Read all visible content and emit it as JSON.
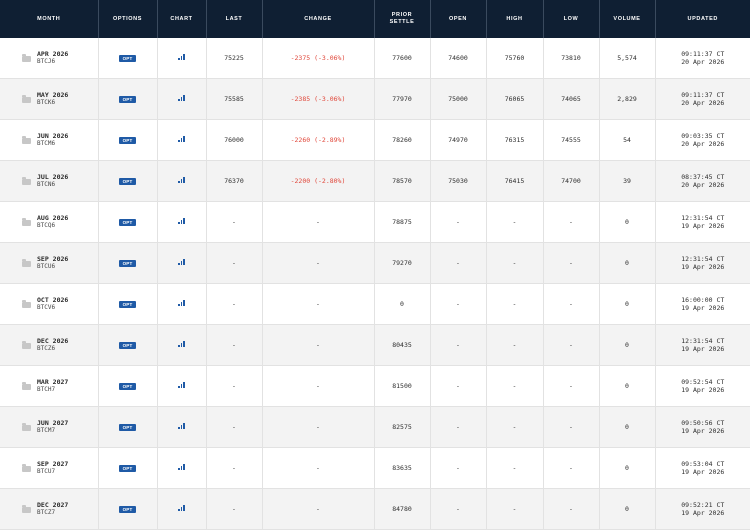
{
  "headers": {
    "month": "MONTH",
    "options": "OPTIONS",
    "chart": "CHART",
    "last": "LAST",
    "change": "CHANGE",
    "prior_settle_1": "PRIOR",
    "prior_settle_2": "SETTLE",
    "open": "OPEN",
    "high": "HIGH",
    "low": "LOW",
    "volume": "VOLUME",
    "updated": "UPDATED"
  },
  "opt_label": "OPT",
  "colors": {
    "header_bg": "#0f1f33",
    "opt_badge": "#1f5aa6",
    "negative": "#e0473a"
  },
  "rows": [
    {
      "month": "APR 2026",
      "code": "BTCJ6",
      "last": "75225",
      "change": "-2375 (-3.06%)",
      "prior_settle": "77600",
      "open": "74600",
      "high": "75760",
      "low": "73810",
      "volume": "5,574",
      "time": "09:11:37 CT",
      "date": "20 Apr 2026"
    },
    {
      "month": "MAY 2026",
      "code": "BTCK6",
      "last": "75585",
      "change": "-2385 (-3.06%)",
      "prior_settle": "77970",
      "open": "75000",
      "high": "76065",
      "low": "74065",
      "volume": "2,829",
      "time": "09:11:37 CT",
      "date": "20 Apr 2026"
    },
    {
      "month": "JUN 2026",
      "code": "BTCM6",
      "last": "76000",
      "change": "-2260 (-2.89%)",
      "prior_settle": "78260",
      "open": "74970",
      "high": "76315",
      "low": "74555",
      "volume": "54",
      "time": "09:03:35 CT",
      "date": "20 Apr 2026"
    },
    {
      "month": "JUL 2026",
      "code": "BTCN6",
      "last": "76370",
      "change": "-2200 (-2.80%)",
      "prior_settle": "78570",
      "open": "75030",
      "high": "76415",
      "low": "74700",
      "volume": "39",
      "time": "08:37:45 CT",
      "date": "20 Apr 2026"
    },
    {
      "month": "AUG 2026",
      "code": "BTCQ6",
      "last": "-",
      "change": "-",
      "prior_settle": "78875",
      "open": "-",
      "high": "-",
      "low": "-",
      "volume": "0",
      "time": "12:31:54 CT",
      "date": "19 Apr 2026"
    },
    {
      "month": "SEP 2026",
      "code": "BTCU6",
      "last": "-",
      "change": "-",
      "prior_settle": "79270",
      "open": "-",
      "high": "-",
      "low": "-",
      "volume": "0",
      "time": "12:31:54 CT",
      "date": "19 Apr 2026"
    },
    {
      "month": "OCT 2026",
      "code": "BTCV6",
      "last": "-",
      "change": "-",
      "prior_settle": "0",
      "open": "-",
      "high": "-",
      "low": "-",
      "volume": "0",
      "time": "16:00:00 CT",
      "date": "19 Apr 2026"
    },
    {
      "month": "DEC 2026",
      "code": "BTCZ6",
      "last": "-",
      "change": "-",
      "prior_settle": "80435",
      "open": "-",
      "high": "-",
      "low": "-",
      "volume": "0",
      "time": "12:31:54 CT",
      "date": "19 Apr 2026"
    },
    {
      "month": "MAR 2027",
      "code": "BTCH7",
      "last": "-",
      "change": "-",
      "prior_settle": "81500",
      "open": "-",
      "high": "-",
      "low": "-",
      "volume": "0",
      "time": "09:52:54 CT",
      "date": "19 Apr 2026"
    },
    {
      "month": "JUN 2027",
      "code": "BTCM7",
      "last": "-",
      "change": "-",
      "prior_settle": "82575",
      "open": "-",
      "high": "-",
      "low": "-",
      "volume": "0",
      "time": "09:50:56 CT",
      "date": "19 Apr 2026"
    },
    {
      "month": "SEP 2027",
      "code": "BTCU7",
      "last": "-",
      "change": "-",
      "prior_settle": "83635",
      "open": "-",
      "high": "-",
      "low": "-",
      "volume": "0",
      "time": "09:53:04 CT",
      "date": "19 Apr 2026"
    },
    {
      "month": "DEC 2027",
      "code": "BTCZ7",
      "last": "-",
      "change": "-",
      "prior_settle": "84780",
      "open": "-",
      "high": "-",
      "low": "-",
      "volume": "0",
      "time": "09:52:21 CT",
      "date": "19 Apr 2026"
    }
  ]
}
